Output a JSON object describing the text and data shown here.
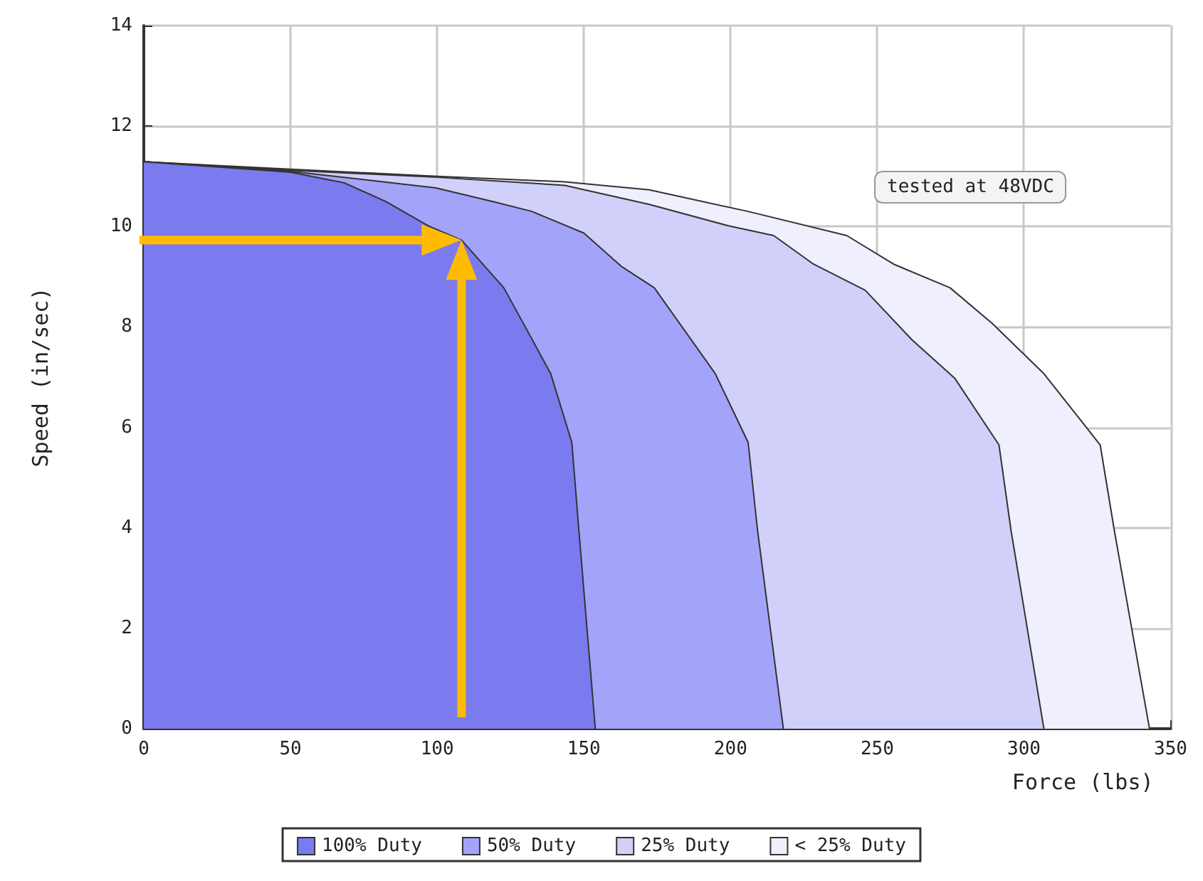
{
  "chart_data": {
    "type": "area",
    "xlabel": "Force (lbs)",
    "ylabel": "Speed (in/sec)",
    "annotations": [
      "tested at 48VDC"
    ],
    "xlim": [
      0,
      350
    ],
    "xticks": [
      0,
      50,
      100,
      150,
      200,
      250,
      300,
      350
    ],
    "ylim": [
      0,
      14
    ],
    "yticks": [
      0,
      2,
      4,
      6,
      8,
      10,
      12,
      14
    ],
    "grid": true,
    "legend": "bottom",
    "series": [
      {
        "name": "100% Duty",
        "color": "#7b7bef",
        "x": [
          0,
          50,
          68.3,
          82.7,
          97.1,
          108.3,
          122.7,
          130.7,
          138.7,
          145.9,
          148.3,
          153.9
        ],
        "values": [
          11.29,
          11.08,
          10.87,
          10.49,
          10.01,
          9.73,
          8.78,
          7.93,
          7.07,
          5.7,
          3.95,
          0
        ]
      },
      {
        "name": "50% Duty",
        "color": "#a3a3fa",
        "x": [
          0,
          50,
          99.5,
          119.5,
          132.3,
          150,
          162.7,
          174,
          194.8,
          206,
          209.2,
          218
        ],
        "values": [
          11.29,
          11.1,
          10.77,
          10.49,
          10.3,
          9.87,
          9.21,
          8.78,
          7.07,
          5.7,
          3.95,
          0
        ]
      },
      {
        "name": "25% Duty",
        "color": "#d0d0fa",
        "x": [
          0,
          50,
          100,
          143.5,
          172.3,
          199.5,
          214.7,
          228.3,
          245.9,
          261.9,
          276.4,
          291.5,
          295.6,
          306.8
        ],
        "values": [
          11.29,
          11.12,
          10.98,
          10.82,
          10.44,
          10.01,
          9.82,
          9.25,
          8.73,
          7.74,
          6.98,
          5.65,
          3.95,
          0
        ]
      },
      {
        "name": "< 25% Duty",
        "color": "#efeffd",
        "x": [
          0,
          50,
          100,
          143.5,
          172.3,
          206,
          239.6,
          255.6,
          274.8,
          289.2,
          306.8,
          326,
          330.8,
          342.8
        ],
        "values": [
          11.29,
          11.14,
          11,
          10.89,
          10.73,
          10.3,
          9.82,
          9.25,
          8.78,
          8.07,
          7.07,
          5.65,
          3.95,
          0
        ]
      }
    ]
  }
}
